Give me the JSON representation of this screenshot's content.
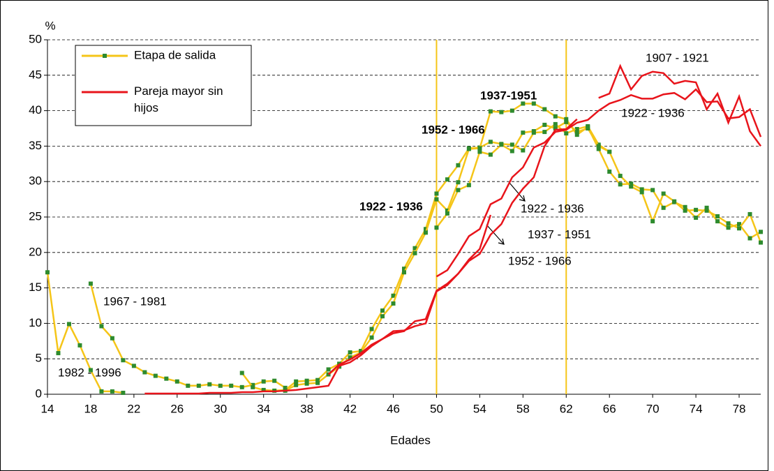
{
  "chart_data": {
    "type": "line",
    "y_label": "%",
    "x_label": "Edades",
    "xlim": [
      14,
      80
    ],
    "xticks": [
      14,
      18,
      22,
      26,
      30,
      34,
      38,
      42,
      46,
      50,
      54,
      58,
      62,
      66,
      70,
      74,
      78
    ],
    "ylim": [
      0,
      50
    ],
    "yticks": [
      0,
      5,
      10,
      15,
      20,
      25,
      30,
      35,
      40,
      45,
      50
    ],
    "grid": true,
    "reference_lines": [
      50,
      62
    ],
    "reference_color": "#f5c518",
    "legend": [
      {
        "label": "Etapa de salida",
        "color": "#f5c518",
        "marker_color": "#2e8b2e"
      },
      {
        "label": "Pareja mayor sin hijos",
        "color": "#e8141b"
      }
    ],
    "legend_position": "upper left",
    "annotations": [
      "1982 - 1996",
      "1967 - 1981",
      "1952 - 1966",
      "1937-1951",
      "1922 - 1936",
      "1952 - 1966",
      "1937 - 1951",
      "1922 - 1936",
      "1907 - 1921",
      "1922 - 1936"
    ],
    "series": [
      {
        "color": "#f5c518",
        "marker_color": "#2e8b2e",
        "x": [
          14,
          15,
          16,
          17,
          18,
          19,
          20,
          21
        ],
        "values": [
          17.2,
          5.8,
          9.9,
          6.9,
          3.4,
          0.4,
          0.4,
          0.2
        ]
      },
      {
        "color": "#f5c518",
        "marker_color": "#2e8b2e",
        "x": [
          18,
          19,
          20,
          21,
          22,
          23,
          24,
          25,
          26,
          27,
          28,
          29,
          30,
          31,
          32,
          33,
          34,
          35,
          36
        ],
        "values": [
          15.6,
          9.6,
          7.9,
          4.8,
          4.0,
          3.1,
          2.6,
          2.2,
          1.8,
          1.2,
          1.2,
          1.4,
          1.2,
          1.2,
          1.0,
          1.3,
          1.8,
          1.9,
          0.9
        ]
      },
      {
        "color": "#f5c518",
        "marker_color": "#2e8b2e",
        "x": [
          32,
          33,
          34,
          35,
          36,
          37,
          38,
          39,
          40,
          41,
          42,
          43,
          44,
          45,
          46,
          47,
          48,
          49,
          50,
          51,
          52,
          53,
          54,
          55,
          56,
          57,
          58,
          59,
          60,
          61,
          62,
          63,
          64,
          65,
          66
        ],
        "values": [
          3.0,
          1.0,
          0.6,
          0.5,
          0.6,
          1.8,
          1.9,
          2.0,
          3.5,
          4.3,
          5.9,
          6.1,
          9.2,
          11.8,
          13.9,
          17.7,
          20.6,
          23.3,
          28.3,
          30.3,
          32.3,
          34.7,
          34.8,
          35.6,
          35.3,
          35.2,
          34.4,
          36.9,
          37.0,
          38.1,
          36.8,
          37.4,
          37.8,
          35.2,
          34.2
        ]
      },
      {
        "color": "#f5c518",
        "marker_color": "#2e8b2e",
        "x": [
          36,
          37,
          38,
          39,
          40,
          41,
          42,
          43,
          44,
          45,
          46,
          47,
          48,
          49,
          50,
          51,
          52,
          53,
          54,
          55,
          56,
          57,
          58,
          59,
          60,
          61,
          62,
          63,
          64,
          65,
          66,
          67,
          68,
          69,
          70,
          71,
          72,
          73,
          74,
          75,
          76,
          77,
          78,
          79,
          80
        ],
        "values": [
          0.5,
          1.3,
          1.5,
          1.6,
          2.8,
          3.9,
          5.2,
          5.9,
          8.0,
          11.0,
          12.8,
          17.2,
          19.9,
          22.8,
          27.5,
          25.9,
          29.9,
          34.6,
          34.7,
          39.9,
          39.8,
          40.0,
          41.0,
          41.0,
          40.2,
          39.2,
          38.8,
          36.6,
          37.7,
          34.6,
          31.4,
          29.6,
          29.7,
          28.9,
          28.8,
          26.3,
          27.1,
          26.4,
          24.9,
          26.3,
          24.4,
          23.5,
          24.0,
          22.0,
          22.9
        ]
      },
      {
        "color": "#f5c518",
        "marker_color": "#2e8b2e",
        "x": [
          50,
          51,
          52,
          53,
          54,
          55,
          56,
          57,
          58,
          59,
          60,
          61,
          62,
          63,
          64,
          65,
          66,
          67,
          68,
          69,
          70,
          71,
          72,
          73,
          74,
          75,
          76,
          77,
          78,
          79,
          80
        ],
        "values": [
          23.5,
          25.5,
          28.8,
          29.5,
          34.2,
          33.8,
          35.2,
          34.3,
          36.9,
          37.1,
          38.0,
          37.5,
          38.4,
          37.0,
          37.5,
          35.0,
          34.2,
          30.8,
          29.3,
          28.5,
          24.4,
          28.3,
          27.2,
          25.9,
          26.0,
          25.9,
          25.1,
          24.1,
          23.4,
          25.4,
          21.4
        ]
      },
      {
        "color": "#e8141b",
        "x": [
          23,
          24,
          25,
          26,
          27,
          28,
          29,
          30,
          31,
          32,
          33,
          34,
          35,
          36,
          37,
          38,
          39,
          40,
          41,
          42,
          43,
          44,
          45,
          46,
          47,
          48,
          49,
          50,
          51,
          52,
          53,
          54,
          55
        ],
        "values": [
          0.1,
          0.1,
          0.1,
          0.1,
          0.1,
          0.1,
          0.2,
          0.2,
          0.2,
          0.3,
          0.3,
          0.4,
          0.4,
          0.5,
          0.6,
          0.8,
          1.0,
          1.2,
          4.0,
          4.5,
          5.5,
          6.8,
          7.8,
          8.9,
          9.0,
          9.6,
          10.0,
          14.5,
          15.4,
          17.0,
          19.0,
          20.5,
          25.3
        ]
      },
      {
        "color": "#e8141b",
        "x": [
          40,
          41,
          42,
          43,
          44,
          45,
          46,
          47,
          48,
          49,
          50,
          51,
          52,
          53,
          54,
          55,
          56,
          57,
          58,
          59,
          60,
          61,
          62,
          63
        ],
        "values": [
          2.8,
          4.2,
          4.9,
          5.8,
          7.0,
          7.8,
          8.6,
          8.9,
          10.3,
          10.6,
          14.6,
          15.6,
          17.0,
          18.8,
          19.8,
          22.5,
          24.0,
          27.0,
          29.0,
          30.6,
          35.0,
          37.3,
          37.4,
          38.8
        ]
      },
      {
        "color": "#e8141b",
        "x": [
          50,
          51,
          52,
          53,
          54,
          55,
          56,
          57,
          58,
          59,
          60,
          61,
          62,
          63,
          64,
          65,
          66,
          67,
          68,
          69,
          70,
          71,
          72,
          73,
          74,
          75,
          76,
          77,
          78,
          79,
          80
        ],
        "values": [
          16.6,
          17.5,
          19.8,
          22.3,
          23.3,
          26.8,
          27.6,
          30.6,
          32.0,
          34.8,
          35.5,
          37.0,
          37.3,
          38.3,
          38.7,
          40.0,
          41.0,
          41.5,
          42.2,
          41.7,
          41.7,
          42.3,
          42.5,
          41.6,
          43.0,
          41.2,
          41.3,
          38.9,
          39.1,
          40.2,
          36.3
        ]
      },
      {
        "color": "#e8141b",
        "x": [
          65,
          66,
          67,
          68,
          69,
          70,
          71,
          72,
          73,
          74,
          75,
          76,
          77,
          78,
          79,
          80
        ],
        "values": [
          41.8,
          42.4,
          46.3,
          43.0,
          44.9,
          45.5,
          45.3,
          43.8,
          44.2,
          44.0,
          40.2,
          42.4,
          38.3,
          42.0,
          37.1,
          35.0
        ]
      }
    ]
  }
}
